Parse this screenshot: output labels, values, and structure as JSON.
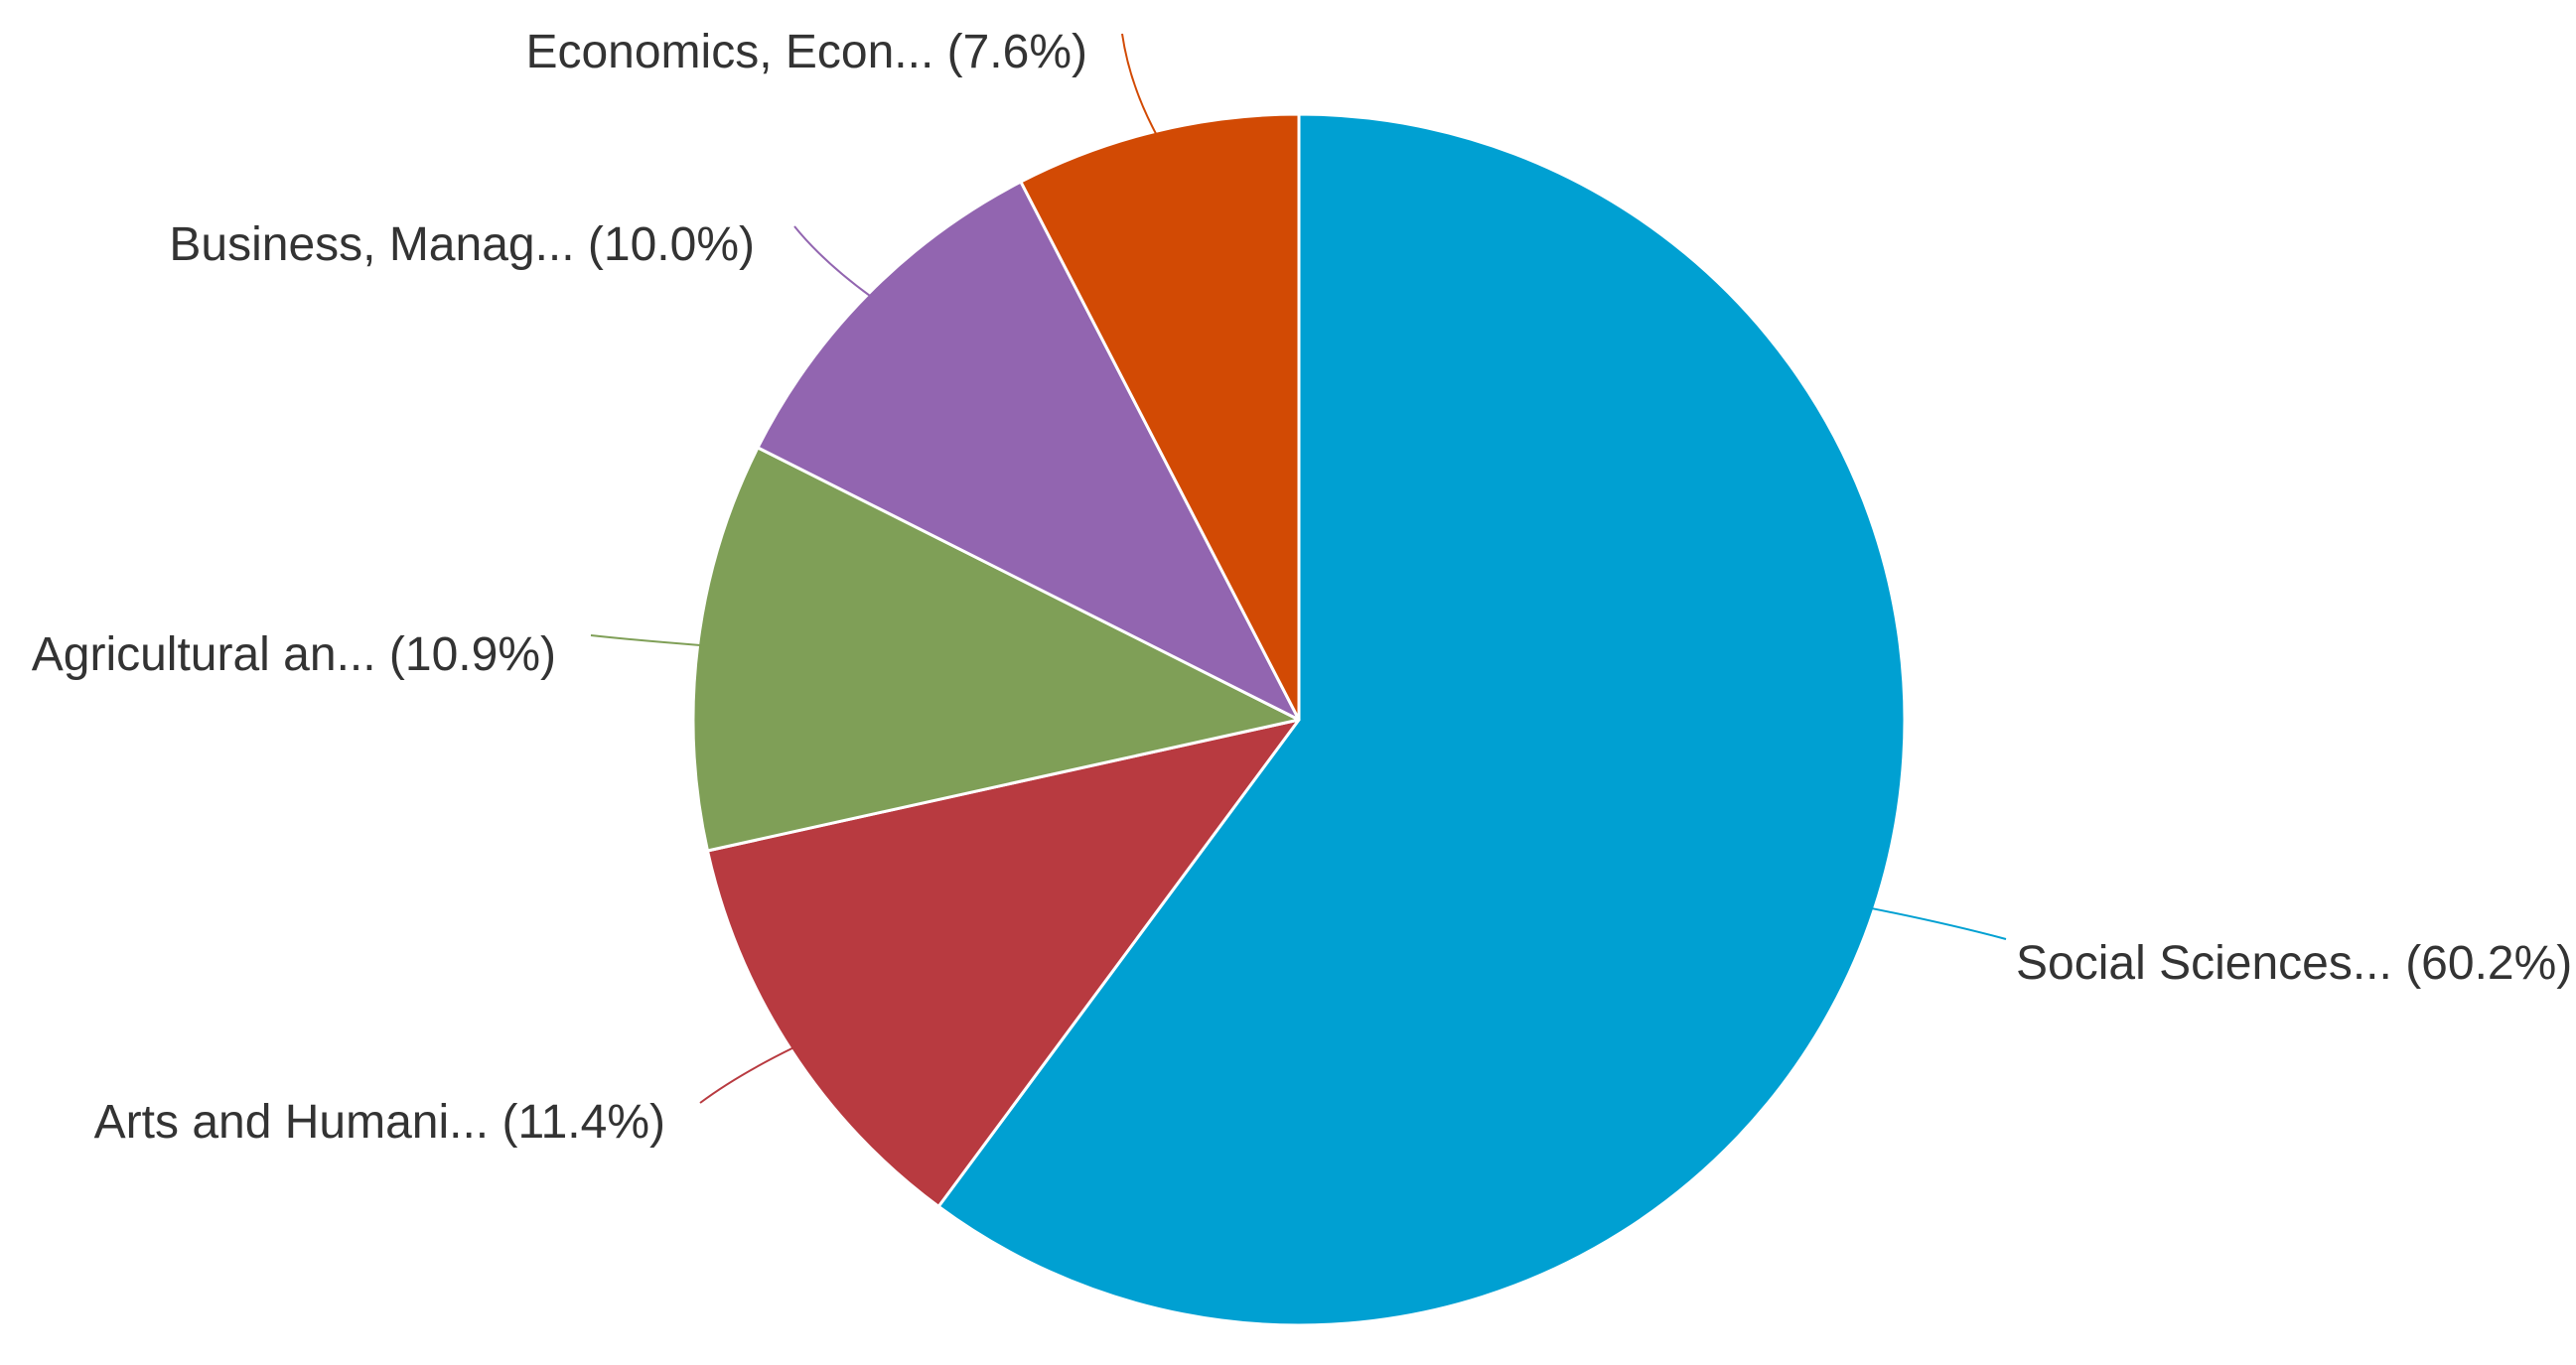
{
  "chart_data": {
    "type": "pie",
    "slices": [
      {
        "label": "Social Sciences...",
        "value": 60.2,
        "display": "(60.2%)",
        "color": "#00a0d2"
      },
      {
        "label": "Arts and Humani...",
        "value": 11.4,
        "display": "(11.4%)",
        "color": "#b83a40"
      },
      {
        "label": "Agricultural an...",
        "value": 10.9,
        "display": "(10.9%)",
        "color": "#7f9f57"
      },
      {
        "label": "Business, Manag...",
        "value": 10.0,
        "display": "(10.0%)",
        "color": "#9265b0"
      },
      {
        "label": "Economics, Econ...",
        "value": 7.6,
        "display": "(7.6%)",
        "color": "#d24a04"
      }
    ],
    "direction": "clockwise",
    "start": "top",
    "legend": "none"
  }
}
